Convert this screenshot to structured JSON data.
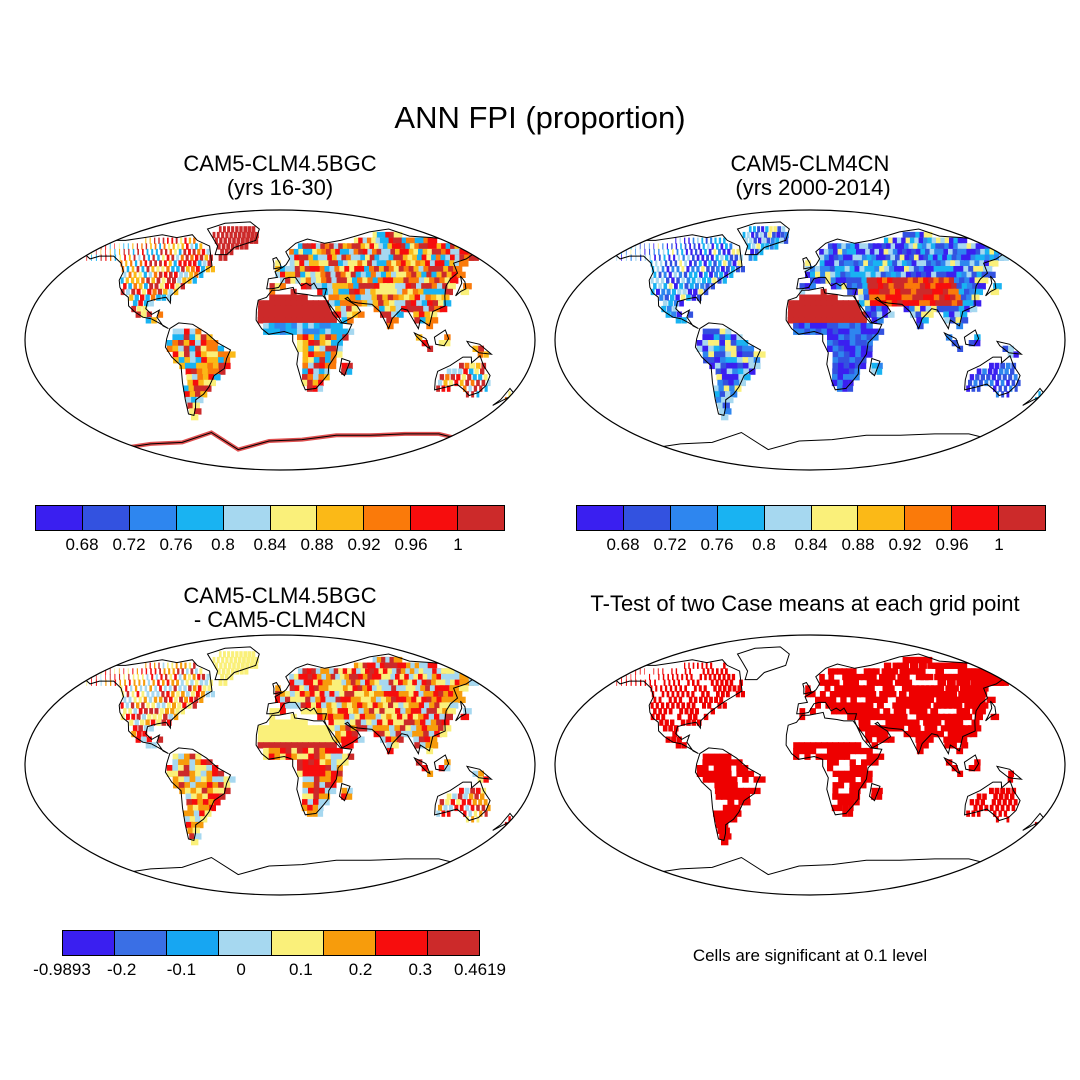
{
  "title": "ANN FPI (proportion)",
  "panels": [
    {
      "id": "p1",
      "title_line1": "CAM5-CLM4.5BGC",
      "title_line2": "(yrs 16-30)",
      "type": "model_field",
      "dominant": "mixed-red"
    },
    {
      "id": "p2",
      "title_line1": "CAM5-CLM4CN",
      "title_line2": " (yrs 2000-2014)",
      "type": "model_field",
      "dominant": "mixed-blue"
    },
    {
      "id": "p3",
      "title_line1": "CAM5-CLM4.5BGC",
      "title_line2": "- CAM5-CLM4CN",
      "type": "difference",
      "dominant": "orange"
    },
    {
      "id": "p4",
      "title_line1": "T-Test of two Case means at each grid point",
      "title_line2": "",
      "type": "significance",
      "dominant": "red"
    }
  ],
  "colorbars": {
    "field": {
      "colors": [
        "#3a1ff0",
        "#3352e0",
        "#2e86ef",
        "#19b3f2",
        "#a6d8f0",
        "#faf07a",
        "#fbb917",
        "#fa7a0a",
        "#f70d0d",
        "#cc2a2a"
      ],
      "labels": [
        "0.68",
        "0.72",
        "0.76",
        "0.8",
        "0.84",
        "0.88",
        "0.92",
        "0.96",
        "1"
      ]
    },
    "diff": {
      "colors": [
        "#3a1ff0",
        "#3a6fe5",
        "#17a6f2",
        "#a6d8f0",
        "#faf07a",
        "#f79c0c",
        "#f70d0d",
        "#cc2a2a"
      ],
      "labels": [
        "-0.9893",
        "-0.2",
        "-0.1",
        "0",
        "0.1",
        "0.2",
        "0.3",
        "0.4619"
      ]
    }
  },
  "significance_note": "Cells are significant at 0.1 level",
  "colors": {
    "significant": "#ee0000",
    "land_outline": "#000000",
    "background": "#ffffff"
  }
}
